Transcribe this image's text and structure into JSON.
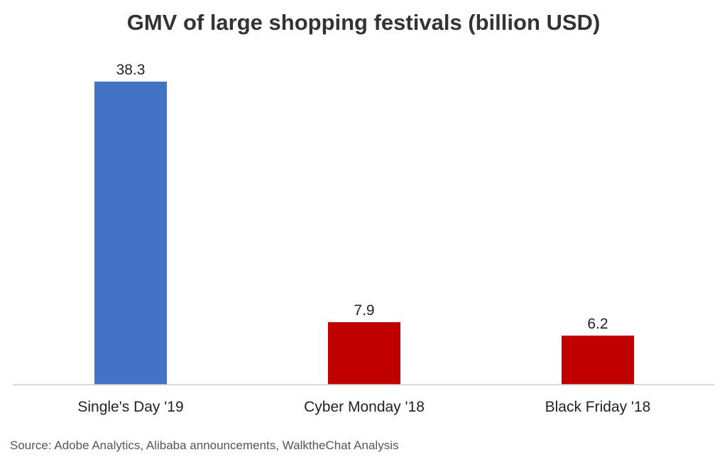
{
  "chart_data": {
    "type": "bar",
    "title": "GMV of large shopping festivals (billion USD)",
    "xlabel": "",
    "ylabel": "",
    "categories": [
      "Single's Day '19",
      "Cyber Monday '18",
      "Black Friday '18"
    ],
    "values": [
      38.3,
      7.9,
      6.2
    ],
    "data_labels": [
      "38.3",
      "7.9",
      "6.2"
    ],
    "ylim": [
      0,
      38.3
    ],
    "grid": false,
    "legend": "none",
    "colors": [
      "#4472C4",
      "#C00000",
      "#C00000"
    ]
  },
  "source": "Source: Adobe Analytics, Alibaba announcements, WalktheChat Analysis"
}
